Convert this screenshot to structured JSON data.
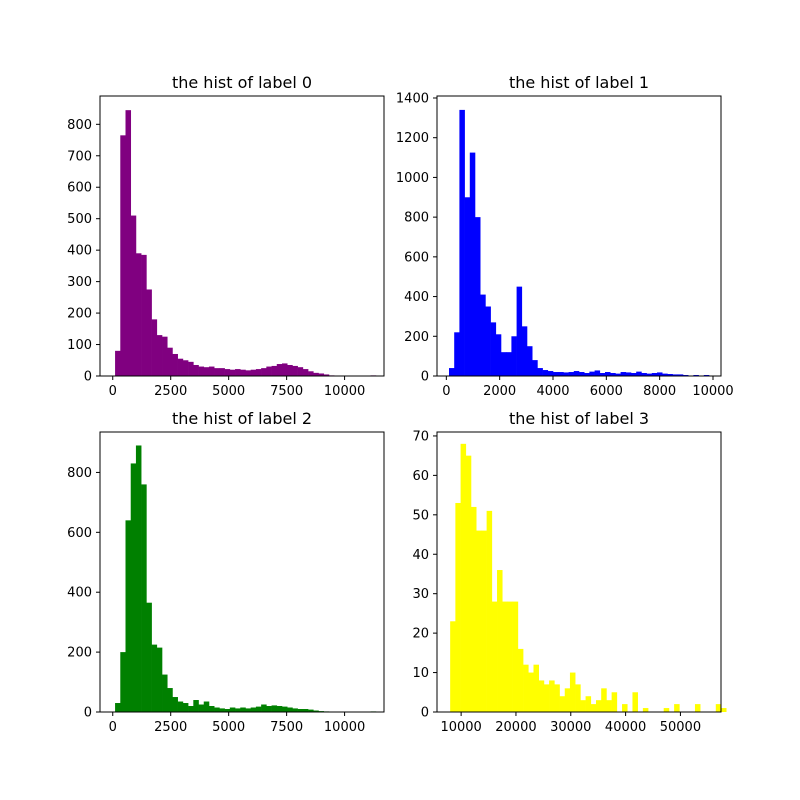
{
  "chart_data": [
    {
      "type": "bar",
      "title": "the hist of label 0",
      "color": "#800080",
      "xlim": [
        -550,
        11700
      ],
      "ylim": [
        0,
        890
      ],
      "xticks": [
        0,
        2500,
        5000,
        7500,
        10000
      ],
      "yticks": [
        0,
        100,
        200,
        300,
        400,
        500,
        600,
        700,
        800
      ],
      "bin_start": 100,
      "bin_width": 225,
      "values": [
        80,
        765,
        845,
        510,
        390,
        385,
        275,
        180,
        130,
        125,
        90,
        70,
        55,
        50,
        45,
        35,
        30,
        28,
        30,
        25,
        25,
        22,
        20,
        22,
        20,
        18,
        20,
        22,
        25,
        30,
        32,
        38,
        40,
        35,
        32,
        28,
        22,
        15,
        10,
        8,
        5,
        2,
        0,
        0,
        0,
        0,
        0,
        0,
        0,
        2
      ]
    },
    {
      "type": "bar",
      "title": "the hist of label 1",
      "color": "#0000ff",
      "xlim": [
        -350,
        10300
      ],
      "ylim": [
        0,
        1410
      ],
      "xticks": [
        0,
        2000,
        4000,
        6000,
        8000,
        10000
      ],
      "yticks": [
        0,
        200,
        400,
        600,
        800,
        1000,
        1200,
        1400
      ],
      "bin_start": 100,
      "bin_width": 195,
      "values": [
        40,
        220,
        1340,
        900,
        1125,
        800,
        410,
        350,
        270,
        210,
        120,
        120,
        200,
        450,
        250,
        150,
        80,
        40,
        30,
        25,
        20,
        20,
        18,
        20,
        25,
        20,
        15,
        22,
        28,
        15,
        20,
        15,
        12,
        20,
        18,
        15,
        22,
        15,
        12,
        15,
        18,
        12,
        10,
        8,
        8,
        5,
        0,
        5,
        0,
        5
      ]
    },
    {
      "type": "bar",
      "title": "the hist of label 2",
      "color": "#008000",
      "xlim": [
        -550,
        11700
      ],
      "ylim": [
        0,
        935
      ],
      "xticks": [
        0,
        2500,
        5000,
        7500,
        10000
      ],
      "yticks": [
        0,
        200,
        400,
        600,
        800
      ],
      "bin_start": 100,
      "bin_width": 225,
      "values": [
        30,
        200,
        640,
        830,
        890,
        760,
        365,
        225,
        215,
        125,
        80,
        50,
        35,
        30,
        20,
        40,
        25,
        35,
        20,
        15,
        12,
        10,
        15,
        12,
        15,
        12,
        15,
        18,
        25,
        20,
        22,
        20,
        18,
        15,
        12,
        10,
        10,
        8,
        5,
        3,
        2,
        0,
        0,
        0,
        0,
        0,
        0,
        0,
        0,
        2
      ]
    },
    {
      "type": "bar",
      "title": "the hist of label 3",
      "color": "#ffff00",
      "xlim": [
        5600,
        57400
      ],
      "ylim": [
        0,
        71
      ],
      "xticks": [
        10000,
        20000,
        30000,
        40000,
        50000
      ],
      "yticks": [
        0,
        10,
        20,
        30,
        40,
        50,
        60,
        70
      ],
      "bin_start": 8000,
      "bin_width": 950,
      "values": [
        23,
        53,
        68,
        65,
        52,
        46,
        46,
        51,
        28,
        36,
        28,
        28,
        28,
        16,
        12,
        10,
        12,
        8,
        7,
        8,
        7,
        4,
        6,
        10,
        7,
        3,
        4,
        2,
        3,
        6,
        3,
        5,
        0,
        2,
        0,
        5,
        0,
        1,
        0,
        0,
        0,
        1,
        0,
        2,
        0,
        0,
        0,
        2,
        0,
        0,
        0,
        2,
        1
      ]
    }
  ]
}
